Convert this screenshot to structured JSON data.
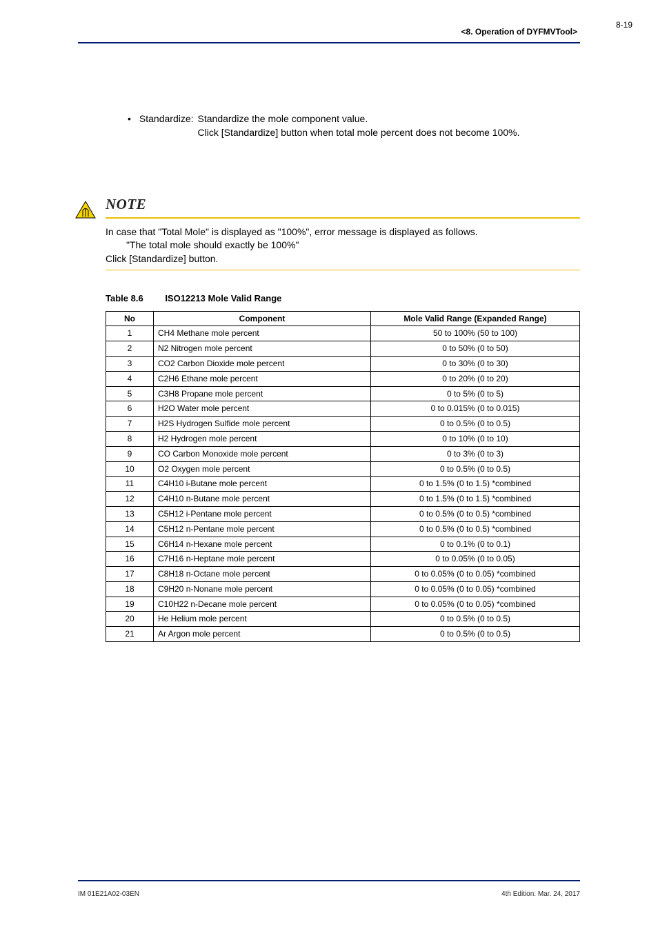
{
  "header": {
    "section": "<8.  Operation of DYFMVTool>",
    "page_num": "8-19"
  },
  "standardize": {
    "label": "Standardize:",
    "line1": "Standardize the mole component value.",
    "line2": "Click [Standardize] button when total mole percent does not become 100%."
  },
  "note": {
    "label": "NOTE",
    "line1": "In case that \"Total Mole\" is displayed as \"100%\", error message is displayed as follows.",
    "line2": "\"The total mole should exactly be 100%\"",
    "line3": "Click [Standardize] button."
  },
  "table": {
    "caption_label": "Table 8.6",
    "caption_title": "ISO12213 Mole Valid Range",
    "headers": {
      "num": "No",
      "component": "Component",
      "range": "Mole Valid Range (Expanded Range)"
    },
    "rows": [
      {
        "n": "1",
        "comp": "CH4 Methane mole percent",
        "range": "50 to 100% (50 to 100)"
      },
      {
        "n": "2",
        "comp": "N2 Nitrogen mole percent",
        "range": "0 to 50% (0 to 50)"
      },
      {
        "n": "3",
        "comp": "CO2 Carbon Dioxide mole percent",
        "range": "0 to 30% (0 to 30)"
      },
      {
        "n": "4",
        "comp": "C2H6 Ethane mole percent",
        "range": "0 to 20% (0 to 20)"
      },
      {
        "n": "5",
        "comp": "C3H8 Propane mole percent",
        "range": "0 to 5% (0 to 5)"
      },
      {
        "n": "6",
        "comp": "H2O Water mole percent",
        "range": "0 to 0.015% (0 to 0.015)"
      },
      {
        "n": "7",
        "comp": "H2S Hydrogen Sulfide mole percent",
        "range": "0 to 0.5% (0 to 0.5)"
      },
      {
        "n": "8",
        "comp": "H2 Hydrogen mole percent",
        "range": "0 to 10% (0 to 10)"
      },
      {
        "n": "9",
        "comp": "CO Carbon Monoxide mole percent",
        "range": "0 to 3% (0 to 3)"
      },
      {
        "n": "10",
        "comp": "O2 Oxygen mole percent",
        "range": "0 to 0.5% (0 to 0.5)"
      },
      {
        "n": "11",
        "comp": "C4H10 i-Butane mole percent",
        "range": "0 to 1.5% (0 to 1.5) *combined"
      },
      {
        "n": "12",
        "comp": "C4H10 n-Butane mole percent",
        "range": "0 to 1.5% (0 to 1.5) *combined"
      },
      {
        "n": "13",
        "comp": "C5H12 i-Pentane mole percent",
        "range": "0 to 0.5% (0 to 0.5) *combined"
      },
      {
        "n": "14",
        "comp": "C5H12 n-Pentane mole percent",
        "range": "0 to 0.5% (0 to 0.5) *combined"
      },
      {
        "n": "15",
        "comp": "C6H14 n-Hexane mole percent",
        "range": "0 to 0.1% (0 to 0.1)"
      },
      {
        "n": "16",
        "comp": "C7H16 n-Heptane mole percent",
        "range": "0 to 0.05% (0 to 0.05)"
      },
      {
        "n": "17",
        "comp": "C8H18 n-Octane mole percent",
        "range": "0 to 0.05% (0 to 0.05) *combined"
      },
      {
        "n": "18",
        "comp": "C9H20 n-Nonane mole percent",
        "range": "0 to 0.05% (0 to 0.05) *combined"
      },
      {
        "n": "19",
        "comp": "C10H22 n-Decane mole percent",
        "range": "0 to 0.05% (0 to 0.05) *combined"
      },
      {
        "n": "20",
        "comp": "He Helium mole percent",
        "range": "0 to 0.5% (0 to 0.5)"
      },
      {
        "n": "21",
        "comp": "Ar Argon mole percent",
        "range": "0 to 0.5% (0 to 0.5)"
      }
    ]
  },
  "footer": {
    "left": "IM 01E21A02-03EN",
    "right": "4th Edition: Mar. 24, 2017"
  },
  "colors": {
    "rule": "#001a6e",
    "note_rule": "#eebe00"
  }
}
